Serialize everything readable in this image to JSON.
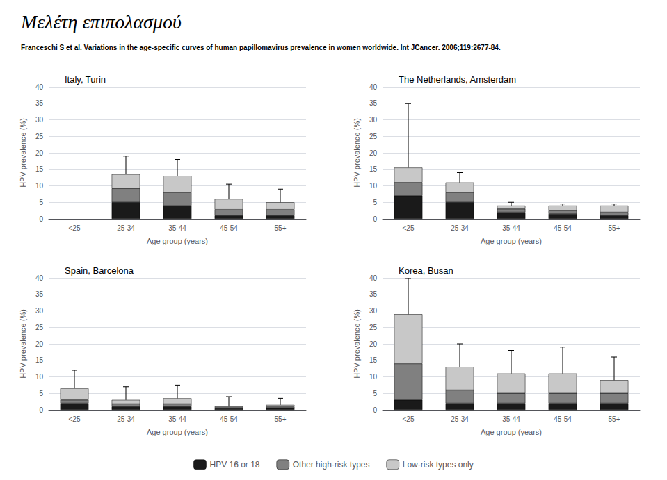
{
  "title": "Μελέτη επιπολασμού",
  "subtitle": "Franceschi S et al. Variations in the age-specific curves of human papillomavirus prevalence in women worldwide. Int JCancer. 2006;119:2677-84.",
  "legend": "bottom",
  "chart_data": [
    {
      "type": "bar",
      "title": "Italy, Turin",
      "stacked": true,
      "grid": true,
      "categories": [
        "<25",
        "25-34",
        "35-44",
        "45-54",
        "55+"
      ],
      "series": [
        {
          "name": "HPV 16 or 18",
          "color": "#1a1a1a",
          "values": [
            null,
            5.0,
            4.0,
            1.0,
            1.0
          ]
        },
        {
          "name": "Other high-risk types",
          "color": "#808080",
          "values": [
            null,
            4.2,
            4.0,
            1.8,
            1.8
          ]
        },
        {
          "name": "Low-risk types only",
          "color": "#c8c8c8",
          "values": [
            null,
            4.3,
            5.0,
            3.2,
            2.2
          ]
        }
      ],
      "error_upper": [
        null,
        19.0,
        18.0,
        10.5,
        9.0
      ],
      "xlabel": "Age group (years)",
      "ylabel": "HPV prevalence (%)",
      "ylim": [
        0,
        40
      ],
      "yticks": [
        0,
        5,
        10,
        15,
        20,
        25,
        30,
        35,
        40
      ]
    },
    {
      "type": "bar",
      "title": "The Netherlands, Amsterdam",
      "stacked": true,
      "grid": true,
      "categories": [
        "<25",
        "25-34",
        "35-44",
        "45-54",
        "55+"
      ],
      "series": [
        {
          "name": "HPV 16 or 18",
          "color": "#1a1a1a",
          "values": [
            7.0,
            5.0,
            2.0,
            1.5,
            1.0
          ]
        },
        {
          "name": "Other high-risk types",
          "color": "#808080",
          "values": [
            4.0,
            3.0,
            1.0,
            1.0,
            1.0
          ]
        },
        {
          "name": "Low-risk types only",
          "color": "#c8c8c8",
          "values": [
            4.5,
            3.0,
            1.0,
            1.5,
            2.0
          ]
        }
      ],
      "error_upper": [
        35.0,
        14.0,
        5.0,
        4.5,
        4.5
      ],
      "xlabel": "Age group (years)",
      "ylabel": "HPV prevalence (%)",
      "ylim": [
        0,
        40
      ],
      "yticks": [
        0,
        5,
        10,
        15,
        20,
        25,
        30,
        35,
        40
      ]
    },
    {
      "type": "bar",
      "title": "Spain, Barcelona",
      "stacked": true,
      "grid": true,
      "categories": [
        "<25",
        "25-34",
        "35-44",
        "45-54",
        "55+"
      ],
      "series": [
        {
          "name": "HPV 16 or 18",
          "color": "#1a1a1a",
          "values": [
            2.0,
            1.0,
            1.0,
            0.4,
            0.5
          ]
        },
        {
          "name": "Other high-risk types",
          "color": "#808080",
          "values": [
            1.0,
            0.8,
            0.8,
            0.3,
            0.4
          ]
        },
        {
          "name": "Low-risk types only",
          "color": "#c8c8c8",
          "values": [
            3.5,
            1.2,
            1.7,
            0.3,
            0.6
          ]
        }
      ],
      "error_upper": [
        12.0,
        7.0,
        7.5,
        4.0,
        3.5
      ],
      "xlabel": "Age group (years)",
      "ylabel": "HPV prevalence (%)",
      "ylim": [
        0,
        40
      ],
      "yticks": [
        0,
        5,
        10,
        15,
        20,
        25,
        30,
        35,
        40
      ]
    },
    {
      "type": "bar",
      "title": "Korea, Busan",
      "stacked": true,
      "grid": true,
      "categories": [
        "<25",
        "25-34",
        "35-44",
        "45-54",
        "55+"
      ],
      "series": [
        {
          "name": "HPV 16 or 18",
          "color": "#1a1a1a",
          "values": [
            3.0,
            2.0,
            2.0,
            2.0,
            2.0
          ]
        },
        {
          "name": "Other high-risk types",
          "color": "#808080",
          "values": [
            11.0,
            4.0,
            3.0,
            3.0,
            3.0
          ]
        },
        {
          "name": "Low-risk types only",
          "color": "#c8c8c8",
          "values": [
            15.0,
            7.0,
            6.0,
            6.0,
            4.0
          ]
        }
      ],
      "error_upper": [
        40.0,
        20.0,
        18.0,
        19.0,
        16.0
      ],
      "xlabel": "Age group (years)",
      "ylabel": "HPV prevalence (%)",
      "ylim": [
        0,
        40
      ],
      "yticks": [
        0,
        5,
        10,
        15,
        20,
        25,
        30,
        35,
        40
      ]
    }
  ]
}
